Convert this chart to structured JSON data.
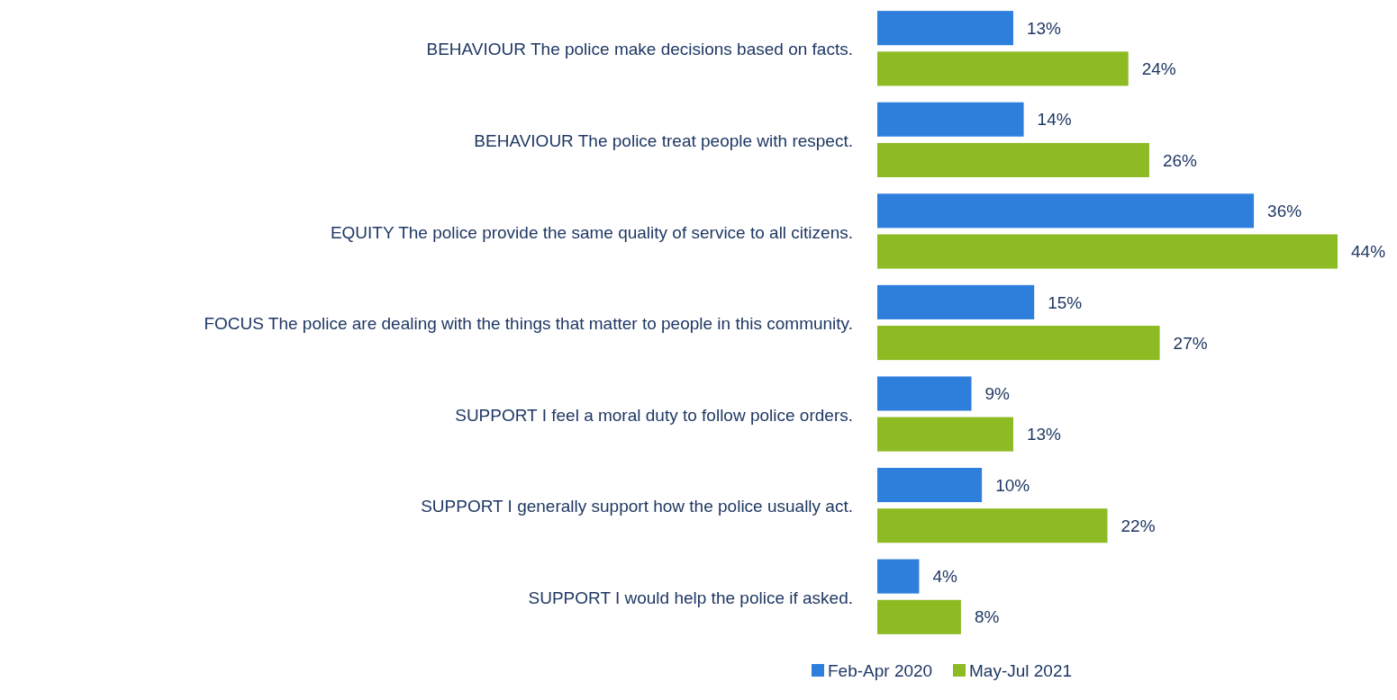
{
  "chart_data": {
    "type": "bar",
    "orientation": "horizontal",
    "categories": [
      "BEHAVIOUR The police make decisions based on facts.",
      "BEHAVIOUR The police treat people with respect.",
      "EQUITY The police provide the same quality of service to all citizens.",
      "FOCUS The police are dealing with the things that matter to people in this community.",
      "SUPPORT I feel a moral duty to follow police orders.",
      "SUPPORT I generally support how the police usually act.",
      "SUPPORT I would help the police if asked."
    ],
    "series": [
      {
        "name": "Feb-Apr 2020",
        "color": "#2e7fdc",
        "values": [
          13,
          14,
          36,
          15,
          9,
          10,
          4
        ],
        "value_labels": [
          "13%",
          "14%",
          "36%",
          "15%",
          "9%",
          "10%",
          "4%"
        ]
      },
      {
        "name": "May-Jul 2021",
        "color": "#8cbb24",
        "values": [
          24,
          26,
          44,
          27,
          13,
          22,
          8
        ],
        "value_labels": [
          "24%",
          "26%",
          "44%",
          "27%",
          "13%",
          "22%",
          "8%"
        ]
      }
    ],
    "legend": "bottom",
    "grid": false
  }
}
